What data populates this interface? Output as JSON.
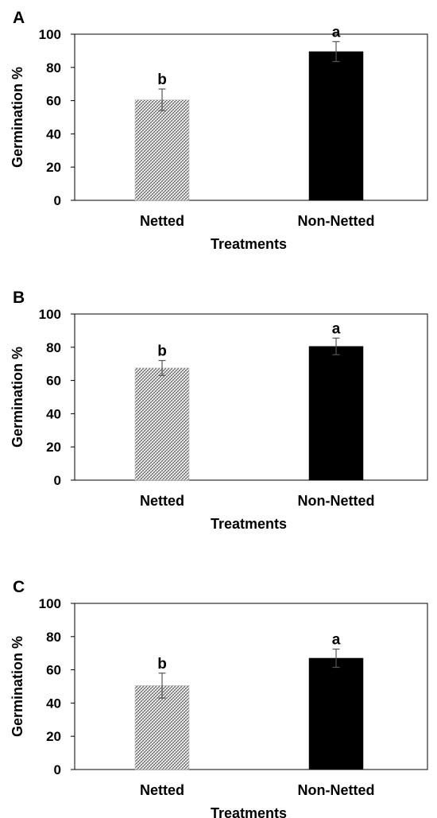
{
  "figure": {
    "background": "#ffffff"
  },
  "chart_data": [
    {
      "type": "bar",
      "panel": "A",
      "categories": [
        "Netted",
        "Non-Netted"
      ],
      "values": [
        60.5,
        89.5
      ],
      "errors": [
        6.5,
        6
      ],
      "significance": [
        "b",
        "a"
      ],
      "xlabel": "Treatments",
      "ylabel": "Germination %",
      "ylim": [
        0,
        100
      ],
      "yticks": [
        0,
        20,
        40,
        60,
        80,
        100
      ],
      "grid": false,
      "legend": "none",
      "bar_styles": [
        "crosshatch",
        "solid"
      ],
      "bar_color": "#000000"
    },
    {
      "type": "bar",
      "panel": "B",
      "categories": [
        "Netted",
        "Non-Netted"
      ],
      "values": [
        67.5,
        80.5
      ],
      "errors": [
        4.5,
        5
      ],
      "significance": [
        "b",
        "a"
      ],
      "xlabel": "Treatments",
      "ylabel": "Germination %",
      "ylim": [
        0,
        100
      ],
      "yticks": [
        0,
        20,
        40,
        60,
        80,
        100
      ],
      "grid": false,
      "legend": "none",
      "bar_styles": [
        "crosshatch",
        "solid"
      ],
      "bar_color": "#000000"
    },
    {
      "type": "bar",
      "panel": "C",
      "categories": [
        "Netted",
        "Non-Netted"
      ],
      "values": [
        50.5,
        67
      ],
      "errors": [
        7.5,
        5.5
      ],
      "significance": [
        "b",
        "a"
      ],
      "xlabel": "Treatments",
      "ylabel": "Germination %",
      "ylim": [
        0,
        100
      ],
      "yticks": [
        0,
        20,
        40,
        60,
        80,
        100
      ],
      "grid": false,
      "legend": "none",
      "bar_styles": [
        "crosshatch",
        "solid"
      ],
      "bar_color": "#000000"
    }
  ]
}
